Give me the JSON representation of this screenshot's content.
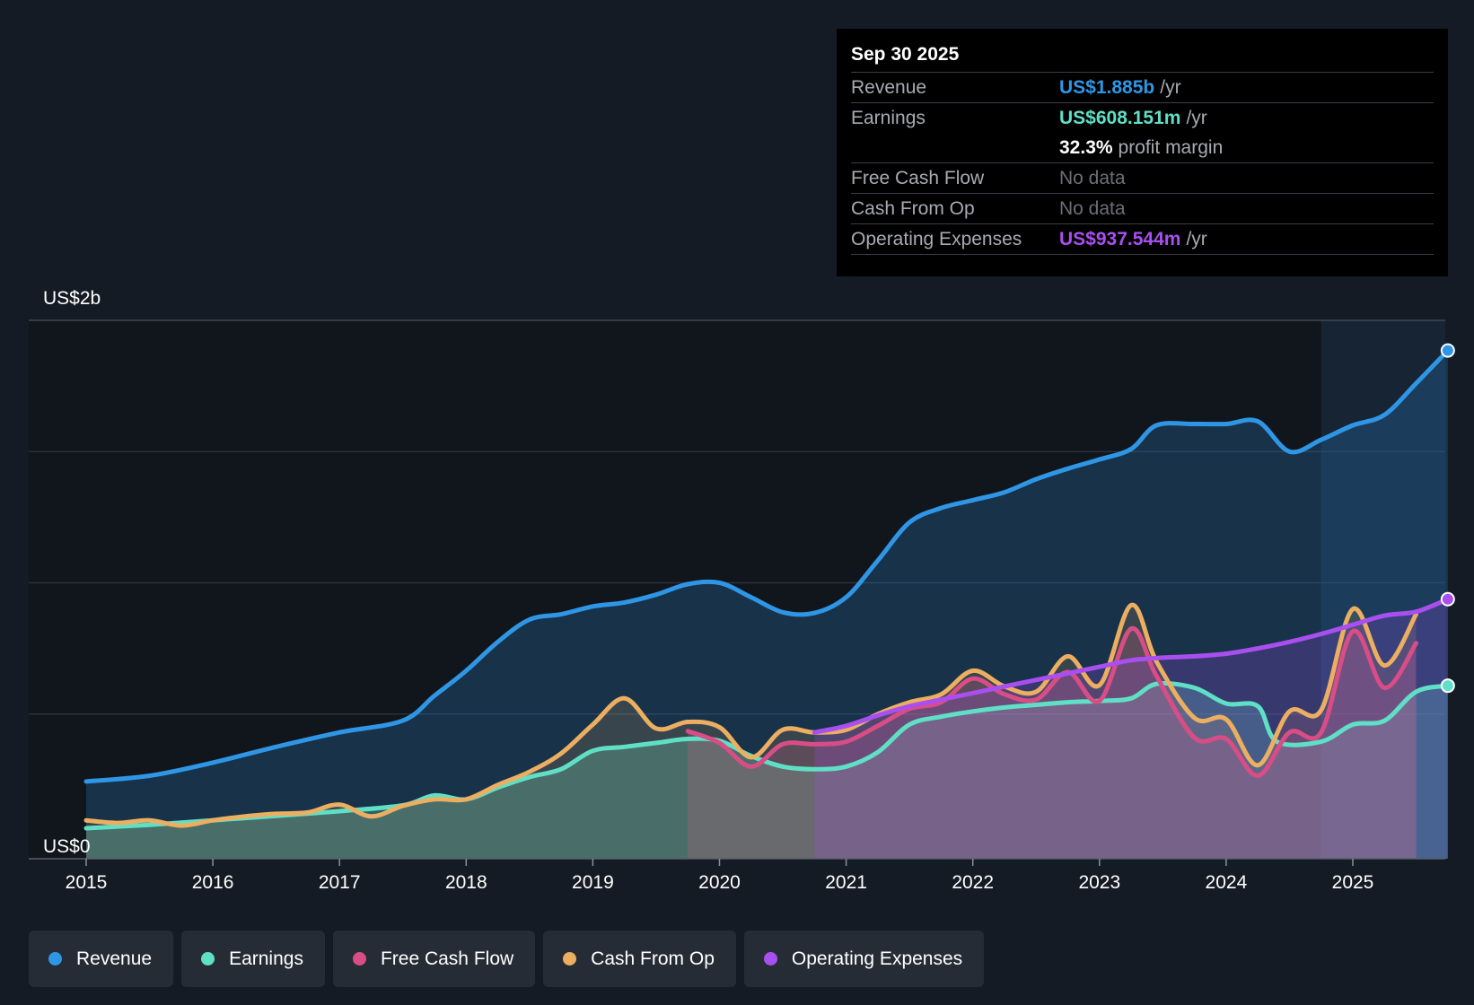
{
  "chart_data": {
    "type": "area",
    "x_range": [
      2014.55,
      2025.8
    ],
    "ylim": [
      0,
      2000
    ],
    "y_labels": [
      {
        "value": 2000,
        "label": "US$2b"
      },
      {
        "value": 0,
        "label": "US$0"
      }
    ],
    "gridlines": [
      2000,
      1500,
      1000,
      500
    ],
    "x_ticks": [
      "2015",
      "2016",
      "2017",
      "2018",
      "2019",
      "2020",
      "2021",
      "2022",
      "2023",
      "2024",
      "2025"
    ],
    "forecast_start": 2024.75,
    "series": [
      {
        "name": "Revenue",
        "key": "revenue",
        "color": "#2f96e6",
        "points": [
          [
            2015,
            243
          ],
          [
            2015.5,
            265
          ],
          [
            2016,
            315
          ],
          [
            2016.5,
            375
          ],
          [
            2017,
            430
          ],
          [
            2017.5,
            475
          ],
          [
            2017.75,
            570
          ],
          [
            2018,
            665
          ],
          [
            2018.25,
            775
          ],
          [
            2018.5,
            860
          ],
          [
            2018.75,
            880
          ],
          [
            2019,
            910
          ],
          [
            2019.25,
            925
          ],
          [
            2019.5,
            955
          ],
          [
            2019.75,
            995
          ],
          [
            2020,
            1000
          ],
          [
            2020.25,
            945
          ],
          [
            2020.5,
            888
          ],
          [
            2020.75,
            885
          ],
          [
            2021,
            945
          ],
          [
            2021.25,
            1085
          ],
          [
            2021.5,
            1230
          ],
          [
            2021.75,
            1285
          ],
          [
            2022,
            1315
          ],
          [
            2022.25,
            1345
          ],
          [
            2022.5,
            1395
          ],
          [
            2022.75,
            1435
          ],
          [
            2023,
            1470
          ],
          [
            2023.25,
            1510
          ],
          [
            2023.45,
            1600
          ],
          [
            2023.75,
            1605
          ],
          [
            2024,
            1605
          ],
          [
            2024.25,
            1615
          ],
          [
            2024.5,
            1500
          ],
          [
            2024.75,
            1545
          ],
          [
            2025,
            1600
          ],
          [
            2025.25,
            1640
          ],
          [
            2025.5,
            1760
          ],
          [
            2025.75,
            1885
          ]
        ],
        "end_value": 1885
      },
      {
        "name": "Earnings",
        "key": "earnings",
        "color": "#5fe0c6",
        "points": [
          [
            2015,
            65
          ],
          [
            2015.5,
            78
          ],
          [
            2016,
            95
          ],
          [
            2016.5,
            112
          ],
          [
            2017,
            130
          ],
          [
            2017.5,
            152
          ],
          [
            2017.75,
            190
          ],
          [
            2018,
            175
          ],
          [
            2018.25,
            220
          ],
          [
            2018.5,
            260
          ],
          [
            2018.75,
            290
          ],
          [
            2019,
            360
          ],
          [
            2019.25,
            375
          ],
          [
            2019.5,
            390
          ],
          [
            2019.75,
            405
          ],
          [
            2020,
            398
          ],
          [
            2020.25,
            340
          ],
          [
            2020.5,
            300
          ],
          [
            2020.75,
            290
          ],
          [
            2021,
            300
          ],
          [
            2021.25,
            355
          ],
          [
            2021.5,
            460
          ],
          [
            2021.75,
            490
          ],
          [
            2022,
            510
          ],
          [
            2022.25,
            525
          ],
          [
            2022.5,
            535
          ],
          [
            2022.75,
            545
          ],
          [
            2023,
            550
          ],
          [
            2023.25,
            560
          ],
          [
            2023.45,
            615
          ],
          [
            2023.75,
            600
          ],
          [
            2024,
            540
          ],
          [
            2024.25,
            530
          ],
          [
            2024.4,
            395
          ],
          [
            2024.75,
            395
          ],
          [
            2025,
            460
          ],
          [
            2025.25,
            475
          ],
          [
            2025.5,
            585
          ],
          [
            2025.75,
            608
          ]
        ],
        "end_value": 608
      },
      {
        "name": "Free Cash Flow",
        "key": "fcf",
        "color": "#d94d86",
        "points": [
          [
            2019.75,
            435
          ],
          [
            2020,
            390
          ],
          [
            2020.25,
            300
          ],
          [
            2020.5,
            385
          ],
          [
            2020.75,
            385
          ],
          [
            2021,
            395
          ],
          [
            2021.25,
            455
          ],
          [
            2021.5,
            520
          ],
          [
            2021.75,
            545
          ],
          [
            2022,
            635
          ],
          [
            2022.25,
            575
          ],
          [
            2022.5,
            555
          ],
          [
            2022.75,
            660
          ],
          [
            2023,
            550
          ],
          [
            2023.25,
            825
          ],
          [
            2023.45,
            645
          ],
          [
            2023.75,
            410
          ],
          [
            2024,
            405
          ],
          [
            2024.25,
            265
          ],
          [
            2024.5,
            430
          ],
          [
            2024.75,
            430
          ],
          [
            2025,
            815
          ],
          [
            2025.25,
            600
          ],
          [
            2025.5,
            770
          ]
        ],
        "end_value": 770
      },
      {
        "name": "Cash From Op",
        "key": "cfo",
        "color": "#ecae61",
        "points": [
          [
            2015,
            95
          ],
          [
            2015.25,
            85
          ],
          [
            2015.5,
            95
          ],
          [
            2015.75,
            75
          ],
          [
            2016,
            95
          ],
          [
            2016.25,
            110
          ],
          [
            2016.5,
            120
          ],
          [
            2016.75,
            125
          ],
          [
            2017,
            155
          ],
          [
            2017.25,
            110
          ],
          [
            2017.5,
            150
          ],
          [
            2017.75,
            175
          ],
          [
            2018,
            175
          ],
          [
            2018.25,
            230
          ],
          [
            2018.5,
            280
          ],
          [
            2018.75,
            350
          ],
          [
            2019,
            460
          ],
          [
            2019.25,
            560
          ],
          [
            2019.5,
            445
          ],
          [
            2019.75,
            470
          ],
          [
            2020,
            450
          ],
          [
            2020.25,
            335
          ],
          [
            2020.5,
            440
          ],
          [
            2020.75,
            430
          ],
          [
            2021,
            440
          ],
          [
            2021.25,
            500
          ],
          [
            2021.5,
            545
          ],
          [
            2021.75,
            575
          ],
          [
            2022,
            665
          ],
          [
            2022.25,
            605
          ],
          [
            2022.5,
            585
          ],
          [
            2022.75,
            720
          ],
          [
            2023,
            610
          ],
          [
            2023.25,
            915
          ],
          [
            2023.45,
            700
          ],
          [
            2023.75,
            485
          ],
          [
            2024,
            480
          ],
          [
            2024.25,
            305
          ],
          [
            2024.5,
            510
          ],
          [
            2024.75,
            515
          ],
          [
            2025,
            900
          ],
          [
            2025.25,
            685
          ],
          [
            2025.5,
            880
          ]
        ],
        "end_value": 880
      },
      {
        "name": "Operating Expenses",
        "key": "opex",
        "color": "#a94ff0",
        "points": [
          [
            2020.75,
            430
          ],
          [
            2021,
            455
          ],
          [
            2021.25,
            495
          ],
          [
            2021.5,
            530
          ],
          [
            2021.75,
            555
          ],
          [
            2022,
            580
          ],
          [
            2022.25,
            605
          ],
          [
            2022.5,
            630
          ],
          [
            2022.75,
            655
          ],
          [
            2023,
            680
          ],
          [
            2023.25,
            705
          ],
          [
            2023.5,
            715
          ],
          [
            2023.75,
            720
          ],
          [
            2024,
            730
          ],
          [
            2024.25,
            750
          ],
          [
            2024.5,
            775
          ],
          [
            2024.75,
            805
          ],
          [
            2025,
            840
          ],
          [
            2025.25,
            875
          ],
          [
            2025.5,
            890
          ],
          [
            2025.75,
            937.544
          ]
        ],
        "end_value": 937.544
      }
    ]
  },
  "tooltip": {
    "date": "Sep 30 2025",
    "rows": {
      "revenue": {
        "label": "Revenue",
        "value": "US$1.885b",
        "unit": "/yr"
      },
      "earnings": {
        "label": "Earnings",
        "value": "US$608.151m",
        "unit": "/yr"
      },
      "margin": {
        "value": "32.3%",
        "unit": "profit margin"
      },
      "fcf": {
        "label": "Free Cash Flow",
        "value": "No data"
      },
      "cfo": {
        "label": "Cash From Op",
        "value": "No data"
      },
      "opex": {
        "label": "Operating Expenses",
        "value": "US$937.544m",
        "unit": "/yr"
      }
    }
  },
  "legend": [
    {
      "label": "Revenue",
      "color": "#2f96e6"
    },
    {
      "label": "Earnings",
      "color": "#5fe0c6"
    },
    {
      "label": "Free Cash Flow",
      "color": "#d94d86"
    },
    {
      "label": "Cash From Op",
      "color": "#ecae61"
    },
    {
      "label": "Operating Expenses",
      "color": "#a94ff0"
    }
  ],
  "colors": {
    "background": "#151b24",
    "plot_background": "#11161d",
    "forecast_band": "#1c3147",
    "grid": "#2f353f"
  }
}
